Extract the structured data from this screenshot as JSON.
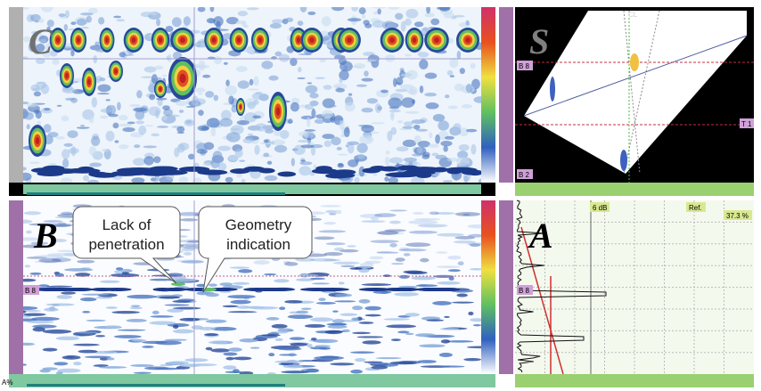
{
  "panels": {
    "c_scan": {
      "label": "C"
    },
    "s_scan": {
      "label": "S",
      "markers": [
        "CL",
        "B 8",
        "B 2",
        "T 1"
      ]
    },
    "b_scan": {
      "label": "B",
      "marker": "B 8"
    },
    "a_scan": {
      "label": "A",
      "gain": "6 dB",
      "ref": "Ref.",
      "amplitude": "37.3 %",
      "marker": "B 8"
    }
  },
  "callouts": [
    {
      "lines": [
        "Lack of",
        "penetration"
      ]
    },
    {
      "lines": [
        "Geometry",
        "indication"
      ]
    }
  ],
  "footer": {
    "axis_label": "A%"
  }
}
